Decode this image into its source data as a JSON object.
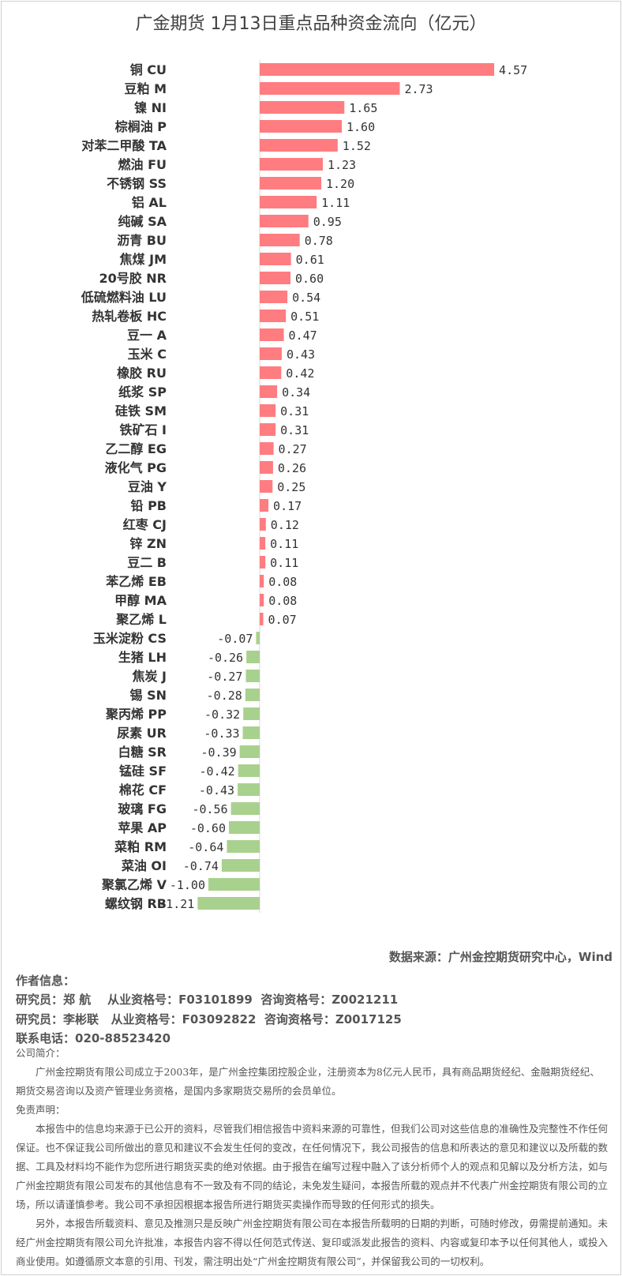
{
  "chart_data": {
    "type": "bar",
    "orientation": "horizontal",
    "title": "广金期货 1月13日重点品种资金流向（亿元）",
    "categories": [
      "铜 CU",
      "豆粕 M",
      "镍 NI",
      "棕榈油 P",
      "对苯二甲酸 TA",
      "燃油 FU",
      "不锈钢 SS",
      "铝 AL",
      "纯碱 SA",
      "沥青 BU",
      "焦煤 JM",
      "20号胶 NR",
      "低硫燃料油 LU",
      "热轧卷板 HC",
      "豆一 A",
      "玉米 C",
      "橡胶 RU",
      "纸浆 SP",
      "硅铁 SM",
      "铁矿石 I",
      "乙二醇 EG",
      "液化气 PG",
      "豆油 Y",
      "铅 PB",
      "红枣 CJ",
      "锌 ZN",
      "豆二 B",
      "苯乙烯 EB",
      "甲醇 MA",
      "聚乙烯 L",
      "玉米淀粉 CS",
      "生猪 LH",
      "焦炭 J",
      "锡 SN",
      "聚丙烯 PP",
      "尿素 UR",
      "白糖 SR",
      "锰硅 SF",
      "棉花 CF",
      "玻璃 FG",
      "苹果 AP",
      "菜粕 RM",
      "菜油 OI",
      "聚氯乙烯 V",
      "螺纹钢 RB"
    ],
    "values": [
      4.57,
      2.73,
      1.65,
      1.6,
      1.52,
      1.23,
      1.2,
      1.11,
      0.95,
      0.78,
      0.61,
      0.6,
      0.54,
      0.51,
      0.47,
      0.43,
      0.42,
      0.34,
      0.31,
      0.31,
      0.27,
      0.26,
      0.25,
      0.17,
      0.12,
      0.11,
      0.11,
      0.08,
      0.08,
      0.07,
      -0.07,
      -0.26,
      -0.27,
      -0.28,
      -0.32,
      -0.33,
      -0.39,
      -0.42,
      -0.43,
      -0.56,
      -0.6,
      -0.64,
      -0.74,
      -1.0,
      -1.21
    ],
    "colors": {
      "positive": "#ff7c80",
      "negative": "#a9d18e"
    },
    "grid": false,
    "legend": "none"
  },
  "source": "数据来源：广州金控期货研究中心，Wind",
  "author": {
    "heading": "作者信息：",
    "lines": [
      "研究员：郑 航    从业资格号：F03101899  咨询资格号：Z0021211",
      "研究员：李彬联   从业资格号：F03092822  咨询资格号：Z0017125"
    ],
    "phone": "联系电话：020-88523420"
  },
  "company": {
    "heading": "公司简介：",
    "text": "广州金控期货有限公司成立于2003年，是广州金控集团控股企业，注册资本为8亿元人民币，具有商品期货经纪、金融期货经纪、期货交易咨询以及资产管理业务资格，是国内多家期货交易所的会员单位。"
  },
  "disclaimer": {
    "heading": "免责声明：",
    "p1": "本报告中的信息均来源于已公开的资料，尽管我们相信报告中资料来源的可靠性，但我们公司对这些信息的准确性及完整性不作任何保证。也不保证我公司所做出的意见和建议不会发生任何的变改，在任何情况下，我公司报告的信息和所表达的意见和建议以及所载的数据、工具及材料均不能作为您所进行期货买卖的绝对依据。由于报告在编写过程中融入了该分析师个人的观点和见解以及分析方法，如与广州金控期货有限公司发布的其他信息有不一致及有不同的结论，未免发生疑问，本报告所载的观点并不代表广州金控期货有限公司的立场，所以请谨慎参考。我公司不承担因根据本报告所进行期货买卖操作而导致的任何形式的损失。",
    "p2": "另外，本报告所载资料、意见及推测只是反映广州金控期货有限公司在本报告所载明的日期的判断，可随时修改，毋需提前通知。未经广州金控期货有限公司允许批准，本报告内容不得以任何范式传送、复印或派发此报告的资料、内容或复印本予以任何其他人，或投入商业使用。如遵循原文本意的引用、刊发，需注明出处“广州金控期货有限公司”，并保留我公司的一切权利。"
  }
}
